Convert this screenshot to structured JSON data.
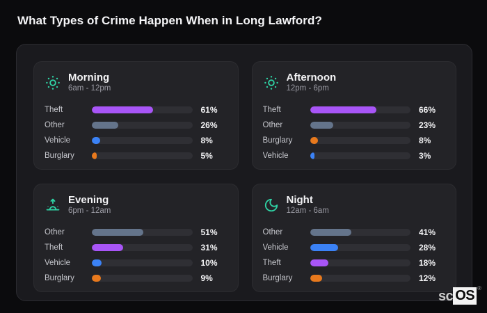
{
  "page": {
    "title": "What Types of Crime Happen When in Long Lawford?"
  },
  "watermark": {
    "prefix": "sc",
    "box": "OS",
    "reg": "®"
  },
  "colors": {
    "page_bg": "#0b0b0d",
    "panel_bg": "#1a1a1e",
    "panel_border": "#2b2b30",
    "card_bg": "#232327",
    "bar_track": "#2f2f34",
    "accent_teal": "#2fd3a5",
    "theft_purple": "#a855f7",
    "other_slate": "#64748b",
    "vehicle_blue": "#3b82f6",
    "burglary_orange": "#e8791d",
    "title_text": "#f5f5f7",
    "muted_text": "#9b9ba4",
    "label_text": "#c6c7cd"
  },
  "chart_data": [
    {
      "type": "bar",
      "orientation": "horizontal",
      "title": "Morning",
      "subtitle": "6am - 12pm",
      "icon": "sun-icon",
      "unit": "%",
      "xlim": [
        0,
        100
      ],
      "categories": [
        "Theft",
        "Other",
        "Vehicle",
        "Burglary"
      ],
      "values": [
        61,
        26,
        8,
        5
      ],
      "value_labels": [
        "61%",
        "26%",
        "8%",
        "5%"
      ],
      "bar_colors": [
        "#a855f7",
        "#64748b",
        "#3b82f6",
        "#e8791d"
      ]
    },
    {
      "type": "bar",
      "orientation": "horizontal",
      "title": "Afternoon",
      "subtitle": "12pm - 6pm",
      "icon": "sun-icon",
      "unit": "%",
      "xlim": [
        0,
        100
      ],
      "categories": [
        "Theft",
        "Other",
        "Burglary",
        "Vehicle"
      ],
      "values": [
        66,
        23,
        8,
        3
      ],
      "value_labels": [
        "66%",
        "23%",
        "8%",
        "3%"
      ],
      "bar_colors": [
        "#a855f7",
        "#64748b",
        "#e8791d",
        "#3b82f6"
      ]
    },
    {
      "type": "bar",
      "orientation": "horizontal",
      "title": "Evening",
      "subtitle": "6pm - 12am",
      "icon": "sunrise-icon",
      "unit": "%",
      "xlim": [
        0,
        100
      ],
      "categories": [
        "Other",
        "Theft",
        "Vehicle",
        "Burglary"
      ],
      "values": [
        51,
        31,
        10,
        9
      ],
      "value_labels": [
        "51%",
        "31%",
        "10%",
        "9%"
      ],
      "bar_colors": [
        "#64748b",
        "#a855f7",
        "#3b82f6",
        "#e8791d"
      ]
    },
    {
      "type": "bar",
      "orientation": "horizontal",
      "title": "Night",
      "subtitle": "12am - 6am",
      "icon": "moon-icon",
      "unit": "%",
      "xlim": [
        0,
        100
      ],
      "categories": [
        "Other",
        "Vehicle",
        "Theft",
        "Burglary"
      ],
      "values": [
        41,
        28,
        18,
        12
      ],
      "value_labels": [
        "41%",
        "28%",
        "18%",
        "12%"
      ],
      "bar_colors": [
        "#64748b",
        "#3b82f6",
        "#a855f7",
        "#e8791d"
      ]
    }
  ]
}
